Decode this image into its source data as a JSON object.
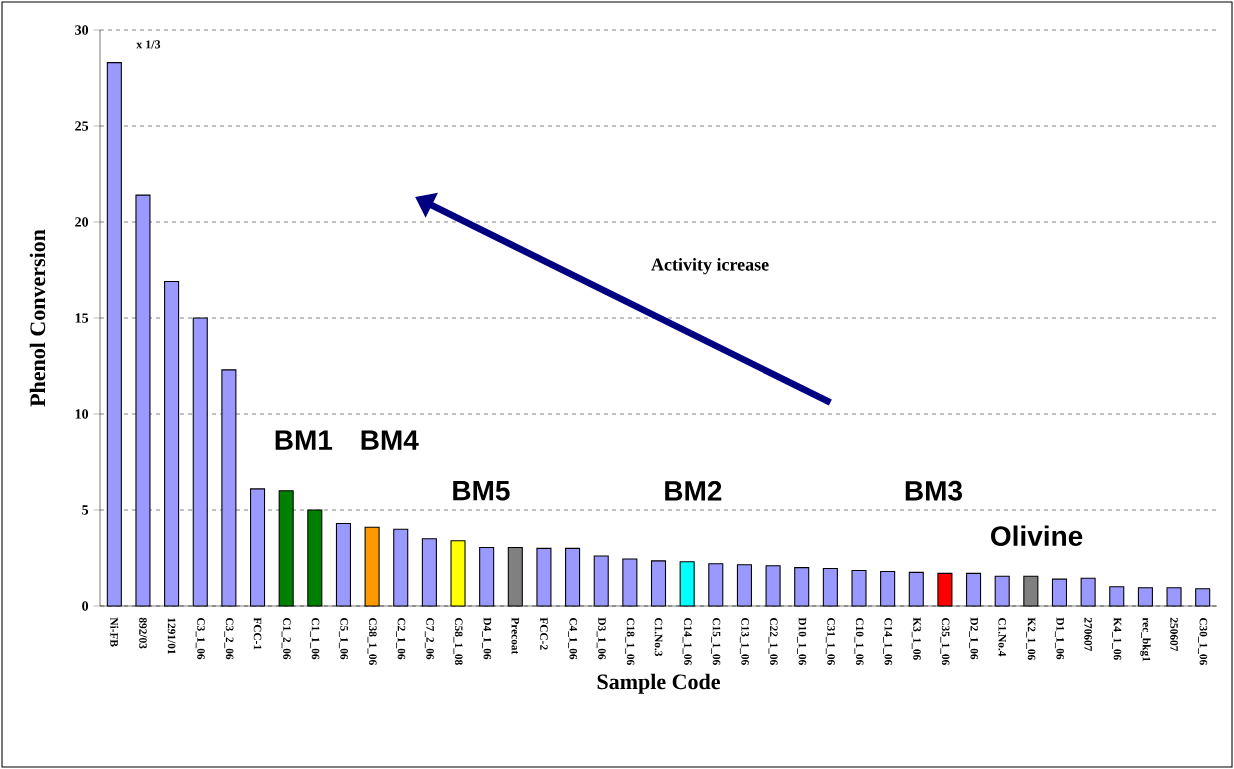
{
  "chart_data": {
    "type": "bar",
    "xlabel": "Sample Code",
    "ylabel": "Phenol Conversion",
    "categories": [
      "Ni-FB",
      "892/03",
      "1291/01",
      "C3_1_06",
      "C3_2_06",
      "FCC-1",
      "C1_2_06",
      "C1_1_06",
      "C5_1_06",
      "C38_1_06",
      "C2_1_06",
      "C7_2_06",
      "C58_1_08",
      "D4_1_06",
      "Precoat",
      "FCC-2",
      "C4_1_06",
      "D3_1_06",
      "C18_1_06",
      "C1.No.3",
      "C14_1_06",
      "C15_1_06",
      "C13_1_06",
      "C22_1_06",
      "D10_1_06",
      "C31_1_06",
      "C10_1_06",
      "C14_1_06",
      "K3_1_06",
      "C35_1_06",
      "D2_1_06",
      "C1.No.4",
      "K2_1_06",
      "D1_1_06",
      "270607",
      "K4_1_06",
      "rec_bkg1",
      "250607",
      "C30_1_06"
    ],
    "values": [
      28.3,
      21.4,
      16.9,
      15.0,
      12.3,
      6.1,
      6.0,
      5.0,
      4.3,
      4.1,
      4.0,
      3.5,
      3.4,
      3.05,
      3.05,
      3.0,
      3.0,
      2.6,
      2.45,
      2.35,
      2.3,
      2.2,
      2.15,
      2.1,
      2.0,
      1.95,
      1.85,
      1.8,
      1.75,
      1.7,
      1.7,
      1.55,
      1.55,
      1.4,
      1.45,
      1.0,
      0.95,
      0.95,
      0.9
    ],
    "colors": [
      "#9999ff",
      "#9999ff",
      "#9999ff",
      "#9999ff",
      "#9999ff",
      "#9999ff",
      "#008000",
      "#008000",
      "#9999ff",
      "#ff9900",
      "#9999ff",
      "#9999ff",
      "#ffff00",
      "#9999ff",
      "#808080",
      "#9999ff",
      "#9999ff",
      "#9999ff",
      "#9999ff",
      "#9999ff",
      "#00ffff",
      "#9999ff",
      "#9999ff",
      "#9999ff",
      "#9999ff",
      "#9999ff",
      "#9999ff",
      "#9999ff",
      "#9999ff",
      "#ff0000",
      "#9999ff",
      "#9999ff",
      "#808080",
      "#9999ff",
      "#9999ff",
      "#9999ff",
      "#9999ff",
      "#9999ff",
      "#9999ff"
    ],
    "ylim": [
      0,
      30
    ],
    "yticks": [
      0,
      5,
      10,
      15,
      20,
      25,
      30
    ],
    "grid": "y",
    "annotations": [
      "x 1/3",
      "Activity icrease",
      "BM1",
      "BM4",
      "BM5",
      "BM2",
      "BM3",
      "Olivine"
    ]
  }
}
